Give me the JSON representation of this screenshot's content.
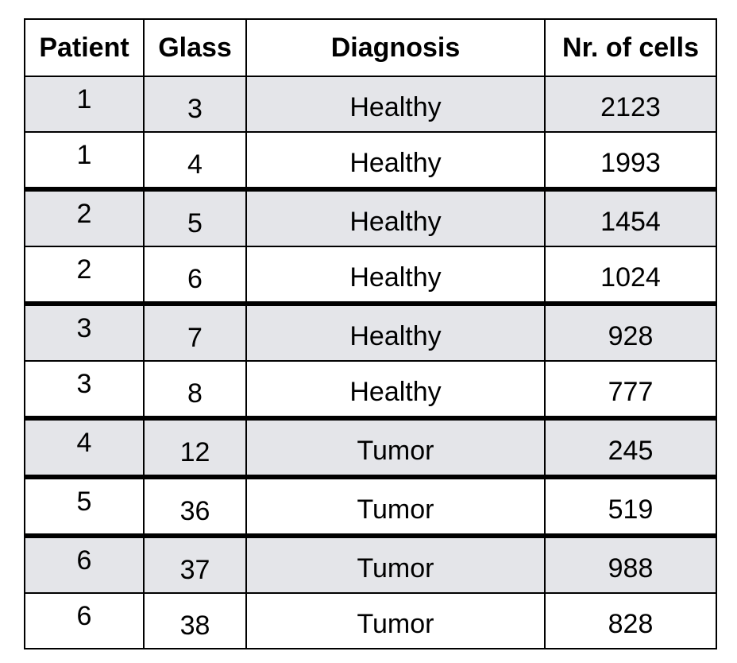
{
  "table": {
    "headers": {
      "patient": "Patient",
      "glass": "Glass",
      "diagnosis": "Diagnosis",
      "cells": "Nr. of cells"
    },
    "rows": [
      {
        "patient": "1",
        "glass": "3",
        "diagnosis": "Healthy",
        "cells": "2123"
      },
      {
        "patient": "1",
        "glass": "4",
        "diagnosis": "Healthy",
        "cells": "1993"
      },
      {
        "patient": "2",
        "glass": "5",
        "diagnosis": "Healthy",
        "cells": "1454"
      },
      {
        "patient": "2",
        "glass": "6",
        "diagnosis": "Healthy",
        "cells": "1024"
      },
      {
        "patient": "3",
        "glass": "7",
        "diagnosis": "Healthy",
        "cells": "928"
      },
      {
        "patient": "3",
        "glass": "8",
        "diagnosis": "Healthy",
        "cells": "777"
      },
      {
        "patient": "4",
        "glass": "12",
        "diagnosis": "Tumor",
        "cells": "245"
      },
      {
        "patient": "5",
        "glass": "36",
        "diagnosis": "Tumor",
        "cells": "519"
      },
      {
        "patient": "6",
        "glass": "37",
        "diagnosis": "Tumor",
        "cells": "988"
      },
      {
        "patient": "6",
        "glass": "38",
        "diagnosis": "Tumor",
        "cells": "828"
      }
    ]
  },
  "colors": {
    "shaded_row": "#e4e5e9",
    "white_row": "#ffffff",
    "border": "#000000"
  }
}
